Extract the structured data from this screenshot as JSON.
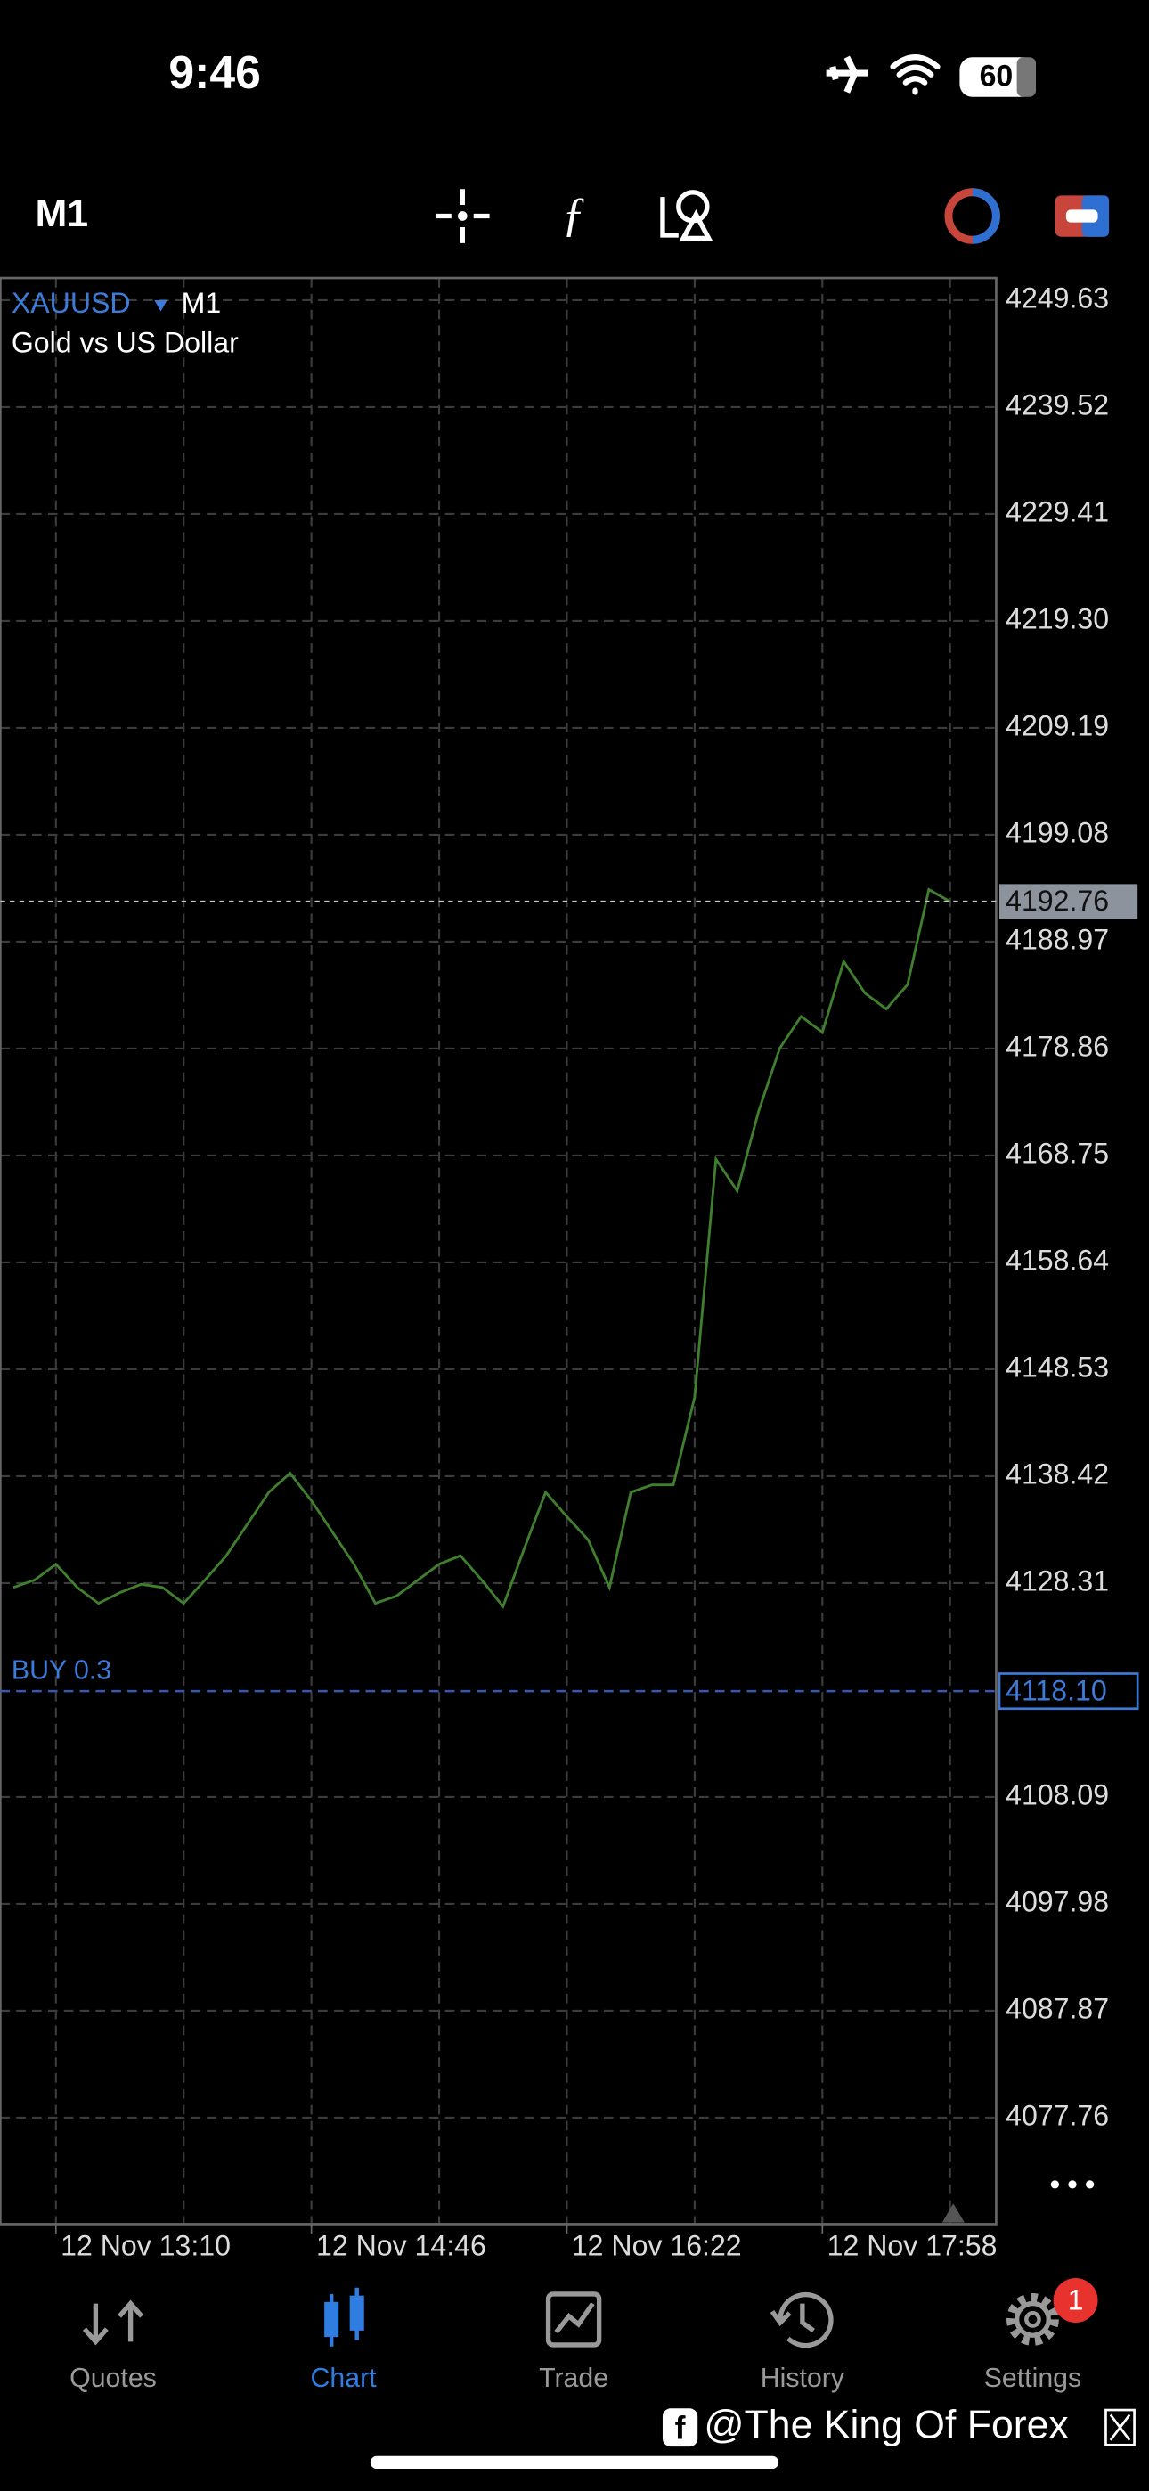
{
  "status_bar": {
    "time": "9:46",
    "battery": "60"
  },
  "toolbar": {
    "timeframe": "M1"
  },
  "chart_data": {
    "type": "line",
    "symbol": "XAUUSD",
    "timeframe": "M1",
    "subtitle": "Gold vs US Dollar",
    "categories": [
      null,
      null,
      "12 Nov 13:10",
      null,
      null,
      null,
      null,
      null,
      null,
      null,
      null,
      null,
      null,
      null,
      "12 Nov 14:46",
      null,
      null,
      null,
      null,
      null,
      null,
      null,
      null,
      null,
      null,
      null,
      "12 Nov 16:22",
      null,
      null,
      null,
      null,
      null,
      null,
      null,
      null,
      null,
      null,
      null,
      "12 Nov 17:58",
      null,
      null,
      null,
      null,
      null,
      null
    ],
    "values": [
      4127.9,
      4128.6,
      4130.1,
      4127.9,
      4126.4,
      4127.4,
      4128.2,
      4127.9,
      4126.4,
      4128.6,
      4130.9,
      4133.9,
      4136.9,
      4138.7,
      4136.1,
      4133.1,
      4130.1,
      4126.4,
      4127.1,
      4128.6,
      4130.1,
      4130.9,
      4128.6,
      4126.1,
      4131.6,
      4136.9,
      4134.6,
      4132.4,
      4127.9,
      4136.9,
      4137.6,
      4137.6,
      4145.9,
      4168.4,
      4165.4,
      4172.9,
      4178.9,
      4181.9,
      4180.4,
      4187.1,
      4184.1,
      4182.6,
      4184.9,
      4193.9,
      4192.76
    ],
    "color": "#3f7f2e",
    "ylim": [
      4067.69,
      4251.73
    ],
    "yticks": [
      4249.63,
      4239.52,
      4229.41,
      {
        "value": 4219.3,
        "label": "4219.30"
      },
      4209.19,
      4199.08,
      4188.97,
      4178.86,
      4168.75,
      4158.64,
      4148.53,
      4138.42,
      4128.31,
      4108.09,
      4097.98,
      4087.87,
      4077.76
    ],
    "grid": true,
    "current_price": 4192.76,
    "order_line": {
      "label": "BUY 0.3",
      "price": {
        "value": 4118.1,
        "label": "4118.10"
      }
    }
  },
  "tab_bar": {
    "tabs": [
      "Quotes",
      "Chart",
      "Trade",
      "History",
      "Settings"
    ],
    "badge": "1"
  },
  "watermark": "@The King Of Forex"
}
